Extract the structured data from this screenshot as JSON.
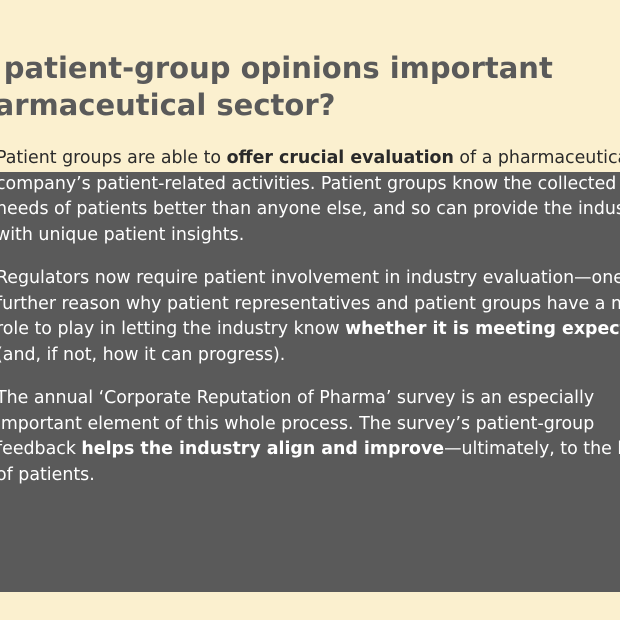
{
  "heading": {
    "lines": [
      "e patient-group opinions important",
      "harmaceutical sector?"
    ]
  },
  "paragraphs": [
    {
      "lines": [
        [
          {
            "t": "Patient groups are able to "
          },
          {
            "t": "offer crucial evaluation",
            "b": true
          },
          {
            "t": " of a pharmaceutical"
          }
        ],
        [
          {
            "t": "company’s patient-related activities. Patient groups know the collected"
          }
        ],
        [
          {
            "t": "needs of patients better than anyone else, and so can provide the industry"
          }
        ],
        [
          {
            "t": "with unique patient insights."
          }
        ]
      ]
    },
    {
      "lines": [
        [
          {
            "t": "Regulators now require patient involvement in industry evaluation—one"
          }
        ],
        [
          {
            "t": "further reason why patient representatives and patient groups have a major"
          }
        ],
        [
          {
            "t": "role to play in letting the industry know "
          },
          {
            "t": "whether it is meeting expectations",
            "b": true
          }
        ],
        [
          {
            "t": "(and, if not, how it can progress)."
          }
        ]
      ]
    },
    {
      "lines": [
        [
          {
            "t": "The annual ‘Corporate Reputation of Pharma’ survey is an especially"
          }
        ],
        [
          {
            "t": "important element of this whole process. The survey’s patient-group"
          }
        ],
        [
          {
            "t": "feedback "
          },
          {
            "t": "helps the industry align and improve",
            "b": true
          },
          {
            "t": "—ultimately, to the benefit"
          }
        ],
        [
          {
            "t": "of patients."
          }
        ]
      ]
    }
  ]
}
